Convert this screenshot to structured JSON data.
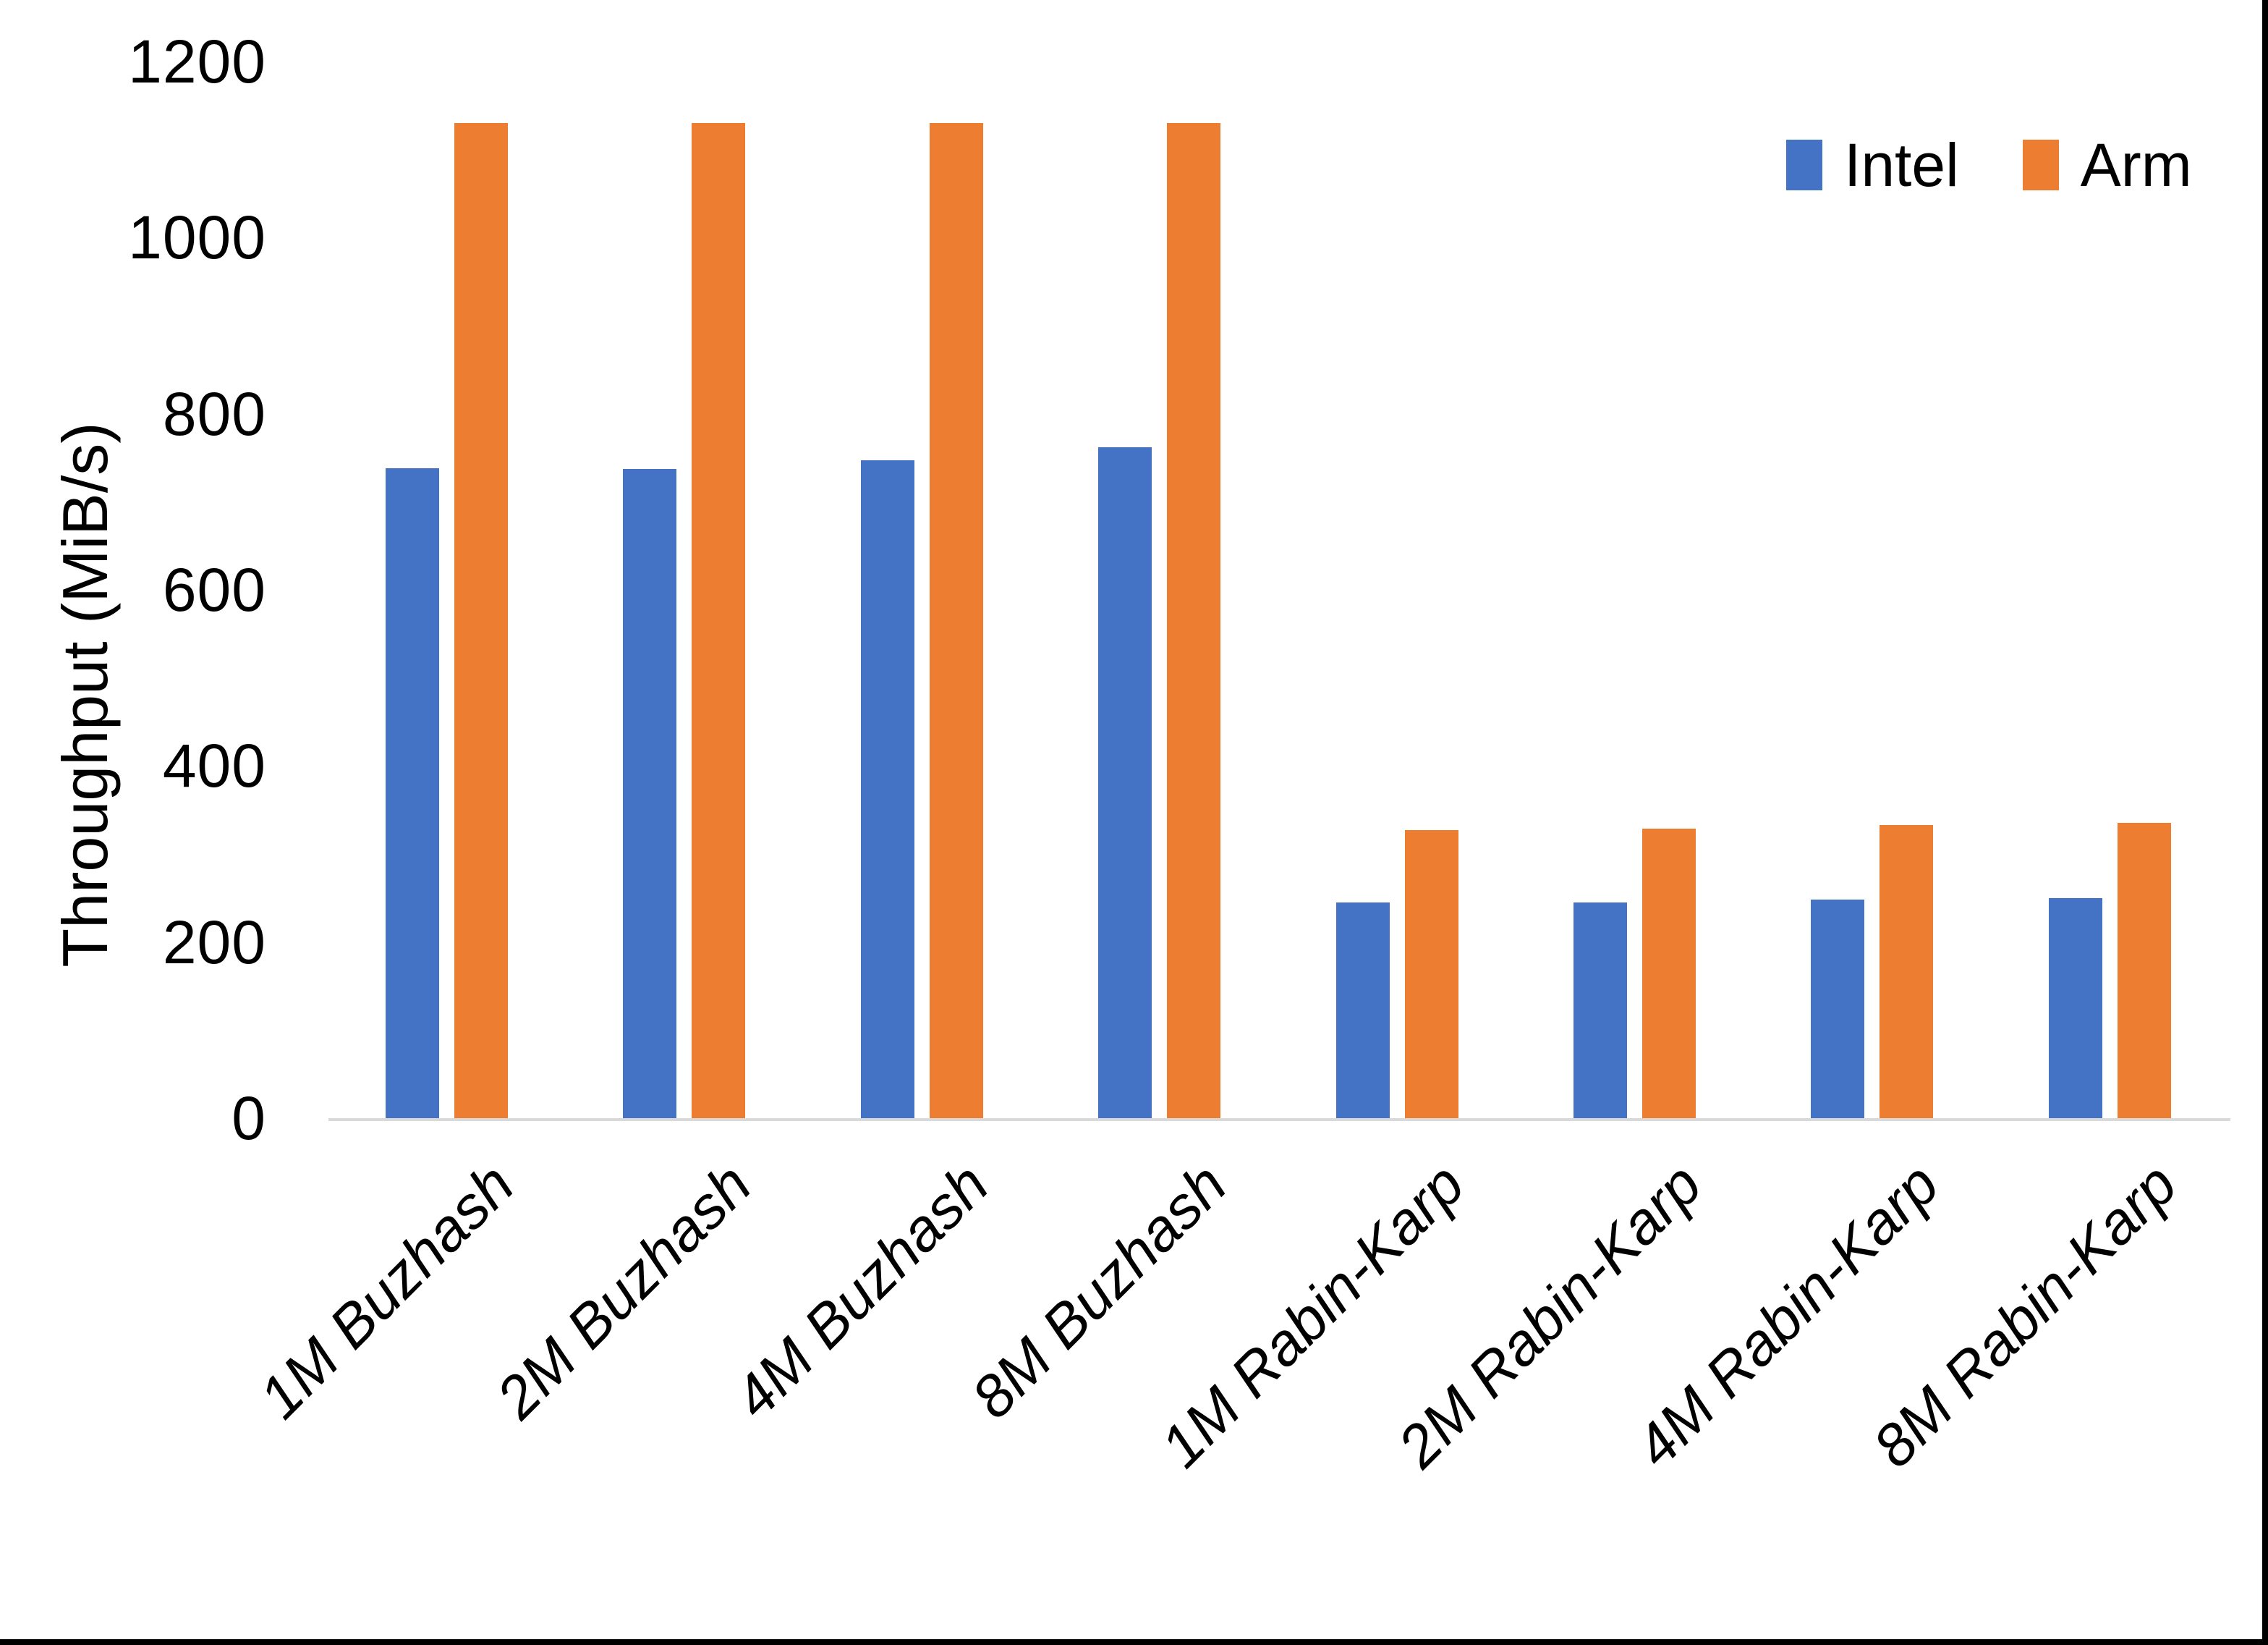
{
  "chart_data": {
    "type": "bar",
    "title": "",
    "xlabel": "",
    "ylabel": "Throughput (MiB/s)",
    "ylim": [
      0,
      1200
    ],
    "yticks": [
      0,
      200,
      400,
      600,
      800,
      1000,
      1200
    ],
    "grid": false,
    "legend_position": "top-right",
    "categories": [
      "1M Buzhash",
      "2M Buzhash",
      "4M Buzhash",
      "8M Buzhash",
      "1M Rabin-Karp",
      "2M Rabin-Karp",
      "4M Rabin-Karp",
      "8M Rabin-Karp"
    ],
    "series": [
      {
        "name": "Intel",
        "color": "#4472C4",
        "values": [
          738,
          737,
          747,
          762,
          245,
          245,
          248,
          250
        ]
      },
      {
        "name": "Arm",
        "color": "#ED7D31",
        "values": [
          1130,
          1130,
          1130,
          1130,
          327,
          329,
          333,
          335
        ]
      }
    ]
  },
  "colors": {
    "background": "#FFFFFF",
    "axis_line": "#D9D9D9",
    "text": "#000000",
    "edge_border": "#000000"
  }
}
